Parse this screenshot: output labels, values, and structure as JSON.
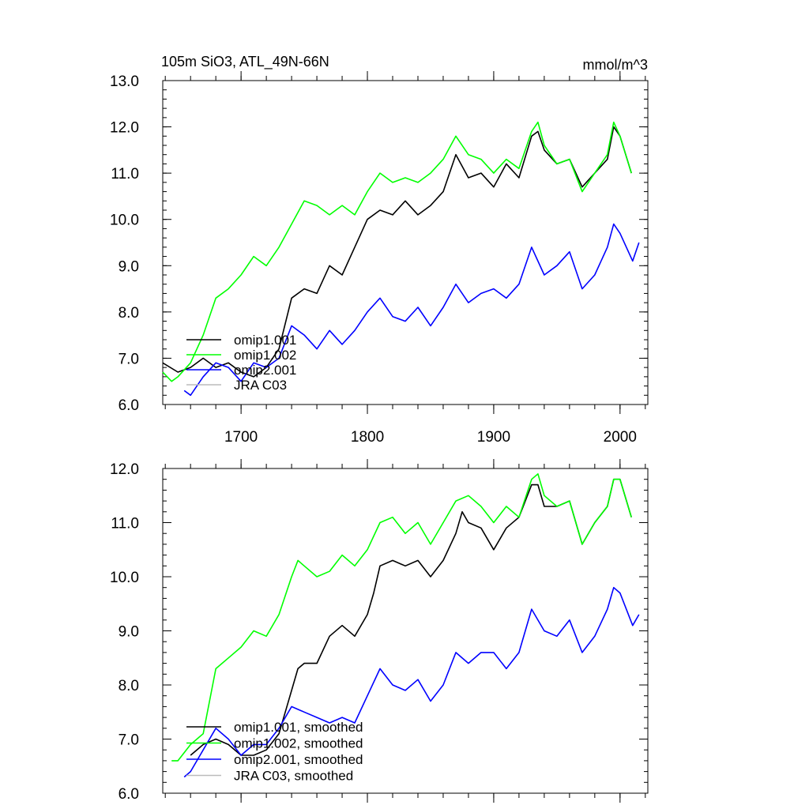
{
  "chart_data": [
    {
      "type": "line",
      "title": "105m SiO3, ATL_49N-66N",
      "units": "mmol/m^3",
      "xlim": [
        1638,
        2022
      ],
      "ylim": [
        6.0,
        13.0
      ],
      "x_ticks": [
        {
          "value": 1700,
          "label": "1700"
        },
        {
          "value": 1800,
          "label": "1800"
        },
        {
          "value": 1900,
          "label": "1900"
        },
        {
          "value": 2000,
          "label": "2000"
        }
      ],
      "y_ticks": [
        {
          "value": 6,
          "label": "6.0"
        },
        {
          "value": 7,
          "label": "7.0"
        },
        {
          "value": 8,
          "label": "8.0"
        },
        {
          "value": 9,
          "label": "9.0"
        },
        {
          "value": 10,
          "label": "10.0"
        },
        {
          "value": 11,
          "label": "11.0"
        },
        {
          "value": 12,
          "label": "12.0"
        },
        {
          "value": 13,
          "label": "13.0"
        }
      ],
      "legend_position": "bottom-left",
      "series": [
        {
          "name": "omip1.001",
          "color": "#000000",
          "x": [
            1638,
            1650,
            1660,
            1670,
            1680,
            1690,
            1700,
            1710,
            1720,
            1730,
            1740,
            1750,
            1760,
            1770,
            1780,
            1790,
            1800,
            1810,
            1820,
            1830,
            1840,
            1850,
            1860,
            1870,
            1880,
            1890,
            1900,
            1910,
            1920,
            1930,
            1935,
            1940,
            1950,
            1960,
            1970,
            1980,
            1990,
            1995,
            2000,
            2009
          ],
          "y": [
            6.9,
            6.7,
            6.8,
            7.0,
            6.8,
            6.9,
            6.7,
            6.6,
            6.8,
            7.2,
            8.3,
            8.5,
            8.4,
            9.0,
            8.8,
            9.4,
            10.0,
            10.2,
            10.1,
            10.4,
            10.1,
            10.3,
            10.6,
            11.4,
            10.9,
            11.0,
            10.7,
            11.2,
            10.9,
            11.8,
            11.9,
            11.5,
            11.2,
            11.3,
            10.7,
            11.0,
            11.3,
            12.0,
            11.8,
            11.0
          ]
        },
        {
          "name": "omip1.002",
          "color": "#00ff00",
          "x": [
            1638,
            1645,
            1650,
            1660,
            1670,
            1680,
            1690,
            1700,
            1710,
            1720,
            1730,
            1740,
            1750,
            1760,
            1770,
            1780,
            1790,
            1800,
            1810,
            1820,
            1830,
            1840,
            1850,
            1860,
            1870,
            1880,
            1890,
            1900,
            1910,
            1920,
            1930,
            1935,
            1940,
            1950,
            1960,
            1970,
            1980,
            1990,
            1995,
            2000,
            2009
          ],
          "y": [
            6.7,
            6.5,
            6.6,
            6.9,
            7.5,
            8.3,
            8.5,
            8.8,
            9.2,
            9.0,
            9.4,
            9.9,
            10.4,
            10.3,
            10.1,
            10.3,
            10.1,
            10.6,
            11.0,
            10.8,
            10.9,
            10.8,
            11.0,
            11.3,
            11.8,
            11.4,
            11.3,
            11.0,
            11.3,
            11.1,
            11.9,
            12.1,
            11.6,
            11.2,
            11.3,
            10.6,
            11.0,
            11.4,
            12.1,
            11.8,
            11.0
          ]
        },
        {
          "name": "omip2.001",
          "color": "#0000ff",
          "x": [
            1655,
            1660,
            1670,
            1680,
            1690,
            1700,
            1710,
            1720,
            1730,
            1740,
            1750,
            1760,
            1770,
            1780,
            1790,
            1800,
            1810,
            1820,
            1830,
            1840,
            1850,
            1860,
            1870,
            1880,
            1890,
            1900,
            1910,
            1920,
            1930,
            1940,
            1950,
            1960,
            1970,
            1980,
            1990,
            1995,
            2000,
            2010,
            2015
          ],
          "y": [
            6.3,
            6.2,
            6.6,
            6.9,
            6.8,
            6.5,
            6.9,
            6.8,
            7.0,
            7.7,
            7.5,
            7.2,
            7.6,
            7.3,
            7.6,
            8.0,
            8.3,
            7.9,
            7.8,
            8.1,
            7.7,
            8.1,
            8.6,
            8.2,
            8.4,
            8.5,
            8.3,
            8.6,
            9.4,
            8.8,
            9.0,
            9.3,
            8.5,
            8.8,
            9.4,
            9.9,
            9.7,
            9.1,
            9.5
          ]
        },
        {
          "name": "JRA C03",
          "color": "#bbbbbb",
          "x": [],
          "y": []
        }
      ]
    },
    {
      "type": "line",
      "xlim": [
        1638,
        2022
      ],
      "ylim": [
        6.0,
        12.0
      ],
      "x_ticks": [
        {
          "value": 1700,
          "label": ""
        },
        {
          "value": 1800,
          "label": ""
        },
        {
          "value": 1900,
          "label": ""
        },
        {
          "value": 2000,
          "label": ""
        }
      ],
      "y_ticks": [
        {
          "value": 6,
          "label": "6.0"
        },
        {
          "value": 7,
          "label": "7.0"
        },
        {
          "value": 8,
          "label": "8.0"
        },
        {
          "value": 9,
          "label": "9.0"
        },
        {
          "value": 10,
          "label": "10.0"
        },
        {
          "value": 11,
          "label": "11.0"
        },
        {
          "value": 12,
          "label": "12.0"
        }
      ],
      "legend_position": "bottom-left",
      "series": [
        {
          "name": "omip1.001, smoothed",
          "color": "#000000",
          "x": [
            1660,
            1670,
            1680,
            1690,
            1700,
            1710,
            1720,
            1730,
            1740,
            1745,
            1750,
            1760,
            1770,
            1780,
            1790,
            1800,
            1805,
            1810,
            1820,
            1830,
            1840,
            1850,
            1860,
            1870,
            1875,
            1880,
            1890,
            1900,
            1910,
            1920,
            1930,
            1935,
            1940,
            1950,
            1960,
            1970,
            1980,
            1990,
            1995,
            2000,
            2009
          ],
          "y": [
            6.7,
            6.9,
            7.0,
            6.9,
            6.7,
            6.7,
            6.8,
            7.1,
            7.9,
            8.3,
            8.4,
            8.4,
            8.9,
            9.1,
            8.9,
            9.3,
            9.7,
            10.2,
            10.3,
            10.2,
            10.3,
            10.0,
            10.3,
            10.8,
            11.2,
            11.0,
            10.9,
            10.5,
            10.9,
            11.1,
            11.7,
            11.7,
            11.3,
            11.3,
            11.4,
            10.6,
            11.0,
            11.3,
            11.8,
            11.8,
            11.1
          ]
        },
        {
          "name": "omip1.002, smoothed",
          "color": "#00ff00",
          "x": [
            1645,
            1650,
            1660,
            1670,
            1680,
            1690,
            1700,
            1710,
            1720,
            1730,
            1740,
            1745,
            1750,
            1760,
            1770,
            1780,
            1790,
            1800,
            1810,
            1820,
            1830,
            1840,
            1850,
            1860,
            1870,
            1880,
            1890,
            1900,
            1910,
            1920,
            1930,
            1935,
            1940,
            1950,
            1960,
            1970,
            1980,
            1990,
            1995,
            2000,
            2009
          ],
          "y": [
            6.6,
            6.6,
            6.9,
            7.1,
            8.3,
            8.5,
            8.7,
            9.0,
            8.9,
            9.3,
            10.0,
            10.3,
            10.2,
            10.0,
            10.1,
            10.4,
            10.2,
            10.5,
            11.0,
            11.1,
            10.8,
            11.0,
            10.6,
            11.0,
            11.4,
            11.5,
            11.3,
            11.0,
            11.3,
            11.1,
            11.8,
            11.9,
            11.5,
            11.3,
            11.4,
            10.6,
            11.0,
            11.3,
            11.8,
            11.8,
            11.1
          ]
        },
        {
          "name": "omip2.001, smoothed",
          "color": "#0000ff",
          "x": [
            1655,
            1660,
            1670,
            1680,
            1690,
            1700,
            1710,
            1720,
            1730,
            1740,
            1750,
            1760,
            1770,
            1780,
            1790,
            1800,
            1810,
            1820,
            1830,
            1840,
            1850,
            1860,
            1870,
            1880,
            1890,
            1900,
            1910,
            1920,
            1930,
            1940,
            1950,
            1960,
            1970,
            1980,
            1990,
            1995,
            2000,
            2010,
            2015
          ],
          "y": [
            6.3,
            6.4,
            6.8,
            7.2,
            7.0,
            6.7,
            6.9,
            6.9,
            7.2,
            7.6,
            7.5,
            7.4,
            7.3,
            7.4,
            7.3,
            7.8,
            8.3,
            8.0,
            7.9,
            8.1,
            7.7,
            8.0,
            8.6,
            8.4,
            8.6,
            8.6,
            8.3,
            8.6,
            9.4,
            9.0,
            8.9,
            9.2,
            8.6,
            8.9,
            9.4,
            9.8,
            9.7,
            9.1,
            9.3
          ]
        },
        {
          "name": "JRA C03, smoothed",
          "color": "#bbbbbb",
          "x": [],
          "y": []
        }
      ]
    }
  ]
}
